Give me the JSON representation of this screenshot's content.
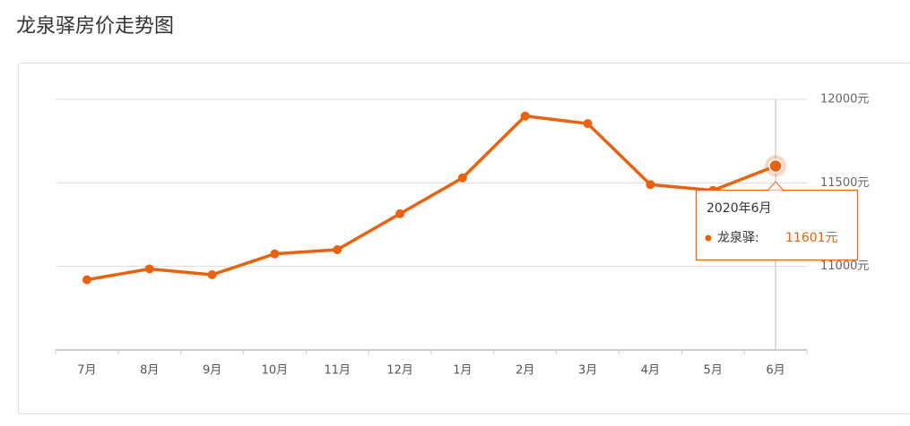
{
  "chart_data": {
    "type": "line",
    "title": "龙泉驿房价走势图",
    "categories": [
      "7月",
      "8月",
      "9月",
      "10月",
      "11月",
      "12月",
      "1月",
      "2月",
      "3月",
      "4月",
      "5月",
      "6月"
    ],
    "series": [
      {
        "name": "龙泉驿",
        "color": "#e8620f",
        "values": [
          10920,
          10985,
          10950,
          11075,
          11100,
          11315,
          11530,
          11900,
          11855,
          11490,
          11455,
          11601
        ],
        "value_labels": [
          null,
          null,
          null,
          null,
          null,
          null,
          null,
          null,
          null,
          null,
          null,
          "11601元"
        ]
      }
    ],
    "ylim": [
      10500,
      12000
    ],
    "yticks": [
      {
        "value": 11000,
        "label": "11000元"
      },
      {
        "value": 11500,
        "label": "11500元"
      },
      {
        "value": 12000,
        "label": "12000元"
      }
    ],
    "grid": true,
    "tooltip": {
      "title": "2020年6月",
      "series_label": "龙泉驿:"
    }
  }
}
